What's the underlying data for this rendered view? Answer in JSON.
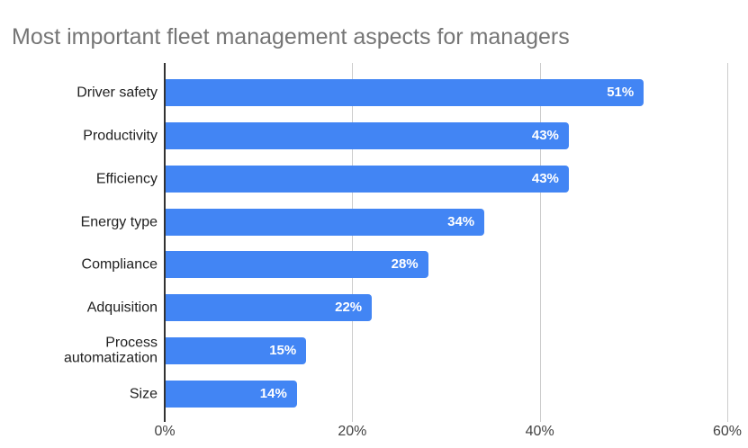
{
  "title": "Most important fleet management aspects for managers",
  "colors": {
    "background": "#ffffff",
    "bar": "#4285f4",
    "value_label": "#ffffff",
    "title": "#757575",
    "category_label": "#212121",
    "axis_label": "#424242",
    "gridline": "#cccccc",
    "baseline": "#333333"
  },
  "chart_data": {
    "type": "bar",
    "orientation": "horizontal",
    "title": "Most important fleet management aspects for managers",
    "categories": [
      "Driver safety",
      "Productivity",
      "Efficiency",
      "Energy type",
      "Compliance",
      "Adquisition",
      "Process automatization",
      "Size"
    ],
    "values": [
      51,
      43,
      43,
      34,
      28,
      22,
      15,
      14
    ],
    "data_labels": [
      "51%",
      "43%",
      "43%",
      "34%",
      "28%",
      "22%",
      "15%",
      "14%"
    ],
    "x_tick_labels": [
      "0%",
      "20%",
      "40%",
      "60%"
    ],
    "x_tick_values": [
      0,
      20,
      40,
      60
    ],
    "xlim": [
      0,
      60
    ],
    "xlabel": "",
    "ylabel": "",
    "grid": true,
    "legend": "none"
  }
}
